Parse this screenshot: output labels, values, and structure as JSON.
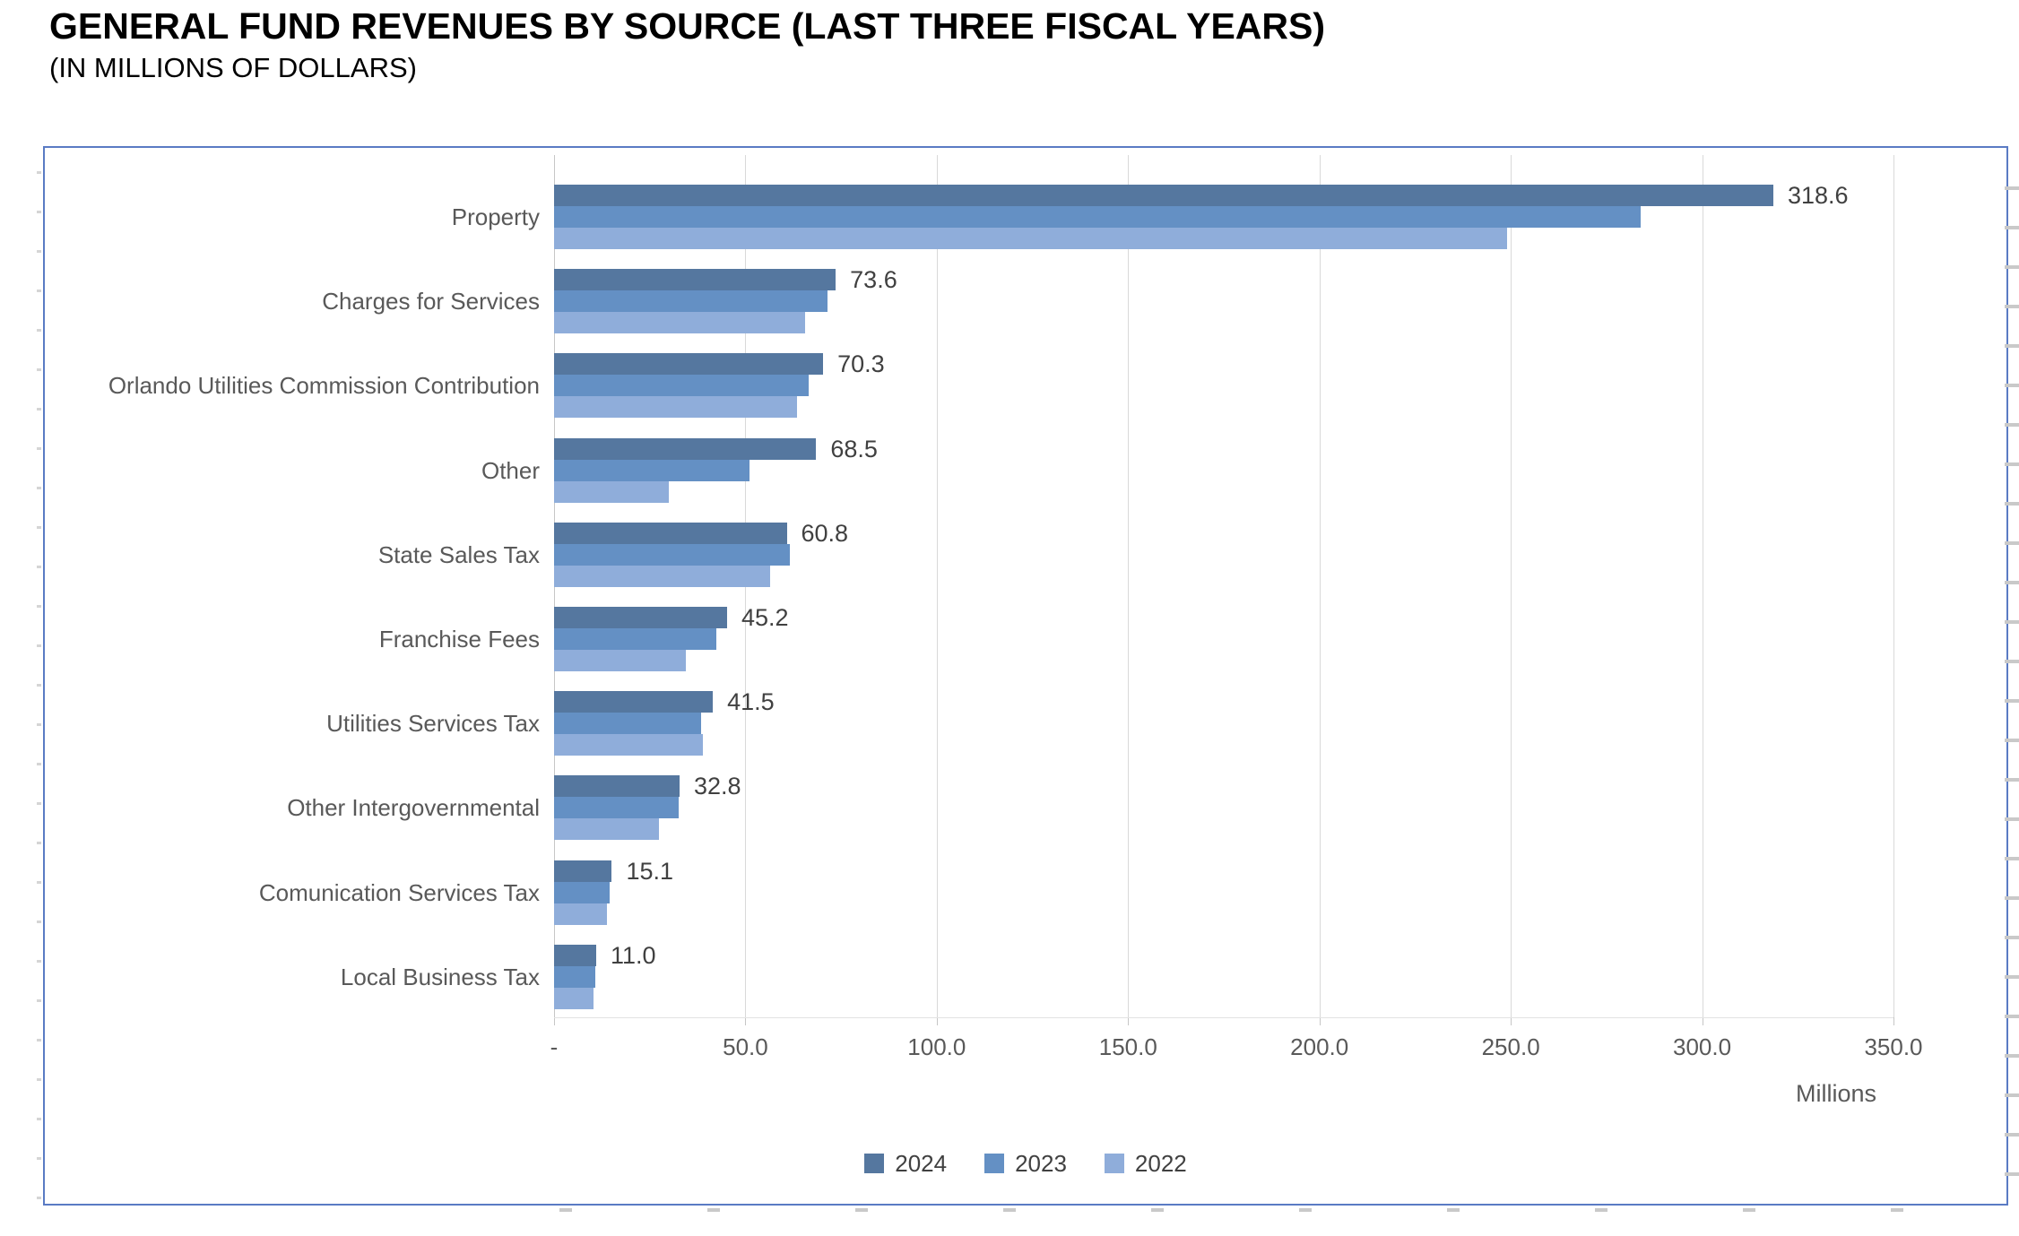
{
  "header": {
    "title": "GENERAL FUND REVENUES BY SOURCE (LAST THREE FISCAL YEARS)",
    "subtitle": "(IN MILLIONS OF DOLLARS)"
  },
  "chart_data": {
    "type": "bar",
    "orientation": "horizontal",
    "title": "GENERAL FUND REVENUES BY SOURCE (LAST THREE FISCAL YEARS)",
    "subtitle": "(IN MILLIONS OF DOLLARS)",
    "categories": [
      "Property",
      "Charges for Services",
      "Orlando Utilities Commission Contribution",
      "Other",
      "State Sales Tax",
      "Franchise Fees",
      "Utilities Services Tax",
      "Other Intergovernmental",
      "Comunication Services Tax",
      "Local Business Tax"
    ],
    "series": [
      {
        "name": "2024",
        "color": "#55779F",
        "values": [
          318.6,
          73.6,
          70.3,
          68.5,
          60.8,
          45.2,
          41.5,
          32.8,
          15.1,
          11.0
        ],
        "data_labels": [
          "318.6",
          "73.6",
          "70.3",
          "68.5",
          "60.8",
          "45.2",
          "41.5",
          "32.8",
          "15.1",
          "11.0"
        ],
        "data_labels_visible": true
      },
      {
        "name": "2023",
        "color": "#6490C4",
        "values": [
          284,
          71.5,
          66.5,
          51,
          61.5,
          42.5,
          38.5,
          32.5,
          14.6,
          10.7
        ],
        "data_labels_visible": false
      },
      {
        "name": "2022",
        "color": "#8FADDA",
        "values": [
          249,
          65.5,
          63.5,
          30,
          56.5,
          34.5,
          39,
          27.5,
          13.9,
          10.2
        ],
        "data_labels_visible": false
      }
    ],
    "x_axis": {
      "ticks": [
        "-",
        "50.0",
        "100.0",
        "150.0",
        "200.0",
        "250.0",
        "300.0",
        "350.0"
      ],
      "tick_values": [
        0,
        50,
        100,
        150,
        200,
        250,
        300,
        350
      ],
      "range": [
        0,
        350
      ],
      "unit_label": "Millions"
    },
    "legend": {
      "position": "bottom",
      "entries": [
        "2024",
        "2023",
        "2022"
      ]
    },
    "grid": true
  },
  "colors": {
    "frame_border": "#5A7BC4",
    "gridline": "#D9D9D9",
    "axis_text": "#595959",
    "category_text": "#595959",
    "data_label_text": "#404040",
    "title_text": "#000000"
  }
}
